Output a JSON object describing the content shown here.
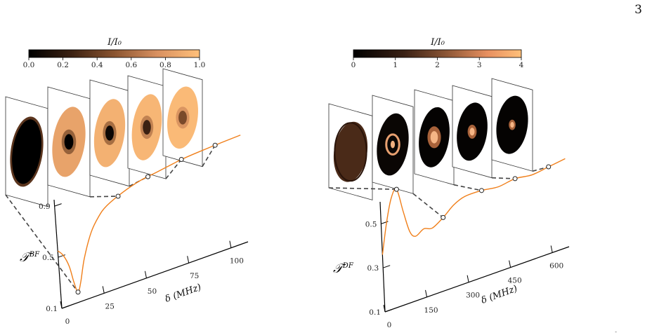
{
  "page_number": "3",
  "footer_mark": "-",
  "colors": {
    "curve": "#f07f1a",
    "dash": "#444444",
    "cmap_low": "#000000",
    "cmap_high": "#ffc07a"
  },
  "left_panel": {
    "colorbar": {
      "title": "I/I₀",
      "ticks": [
        "0.0",
        "0.2",
        "0.4",
        "0.6",
        "0.8",
        "1.0"
      ]
    },
    "ylabel_main": "𝒯",
    "ylabel_sup": "BF",
    "xlabel": "δ (MHz)",
    "yticks": [
      "0.1",
      "0.5",
      "0.9"
    ],
    "xticks": [
      "0",
      "25",
      "50",
      "75",
      "100"
    ]
  },
  "right_panel": {
    "colorbar": {
      "title": "I/I₀",
      "ticks": [
        "0",
        "1",
        "2",
        "3",
        "4"
      ]
    },
    "ylabel_main": "𝒯",
    "ylabel_sup": "DF",
    "xlabel": "δ (MHz)",
    "yticks": [
      "0.1",
      "0.3",
      "0.5"
    ],
    "xticks": [
      "0",
      "150",
      "300",
      "450",
      "600"
    ]
  },
  "chart_data": [
    {
      "type": "line",
      "xlabel": "δ (MHz)",
      "ylabel": "𝒯^BF",
      "xlim": [
        0,
        110
      ],
      "ylim": [
        0.1,
        0.95
      ],
      "series": [
        {
          "x": [
            0,
            3,
            6,
            8,
            10,
            12,
            15,
            20,
            25,
            30,
            40,
            50,
            60,
            70,
            75,
            85,
            100,
            110
          ],
          "y": [
            0.55,
            0.5,
            0.4,
            0.27,
            0.18,
            0.25,
            0.42,
            0.6,
            0.7,
            0.76,
            0.82,
            0.86,
            0.88,
            0.9,
            0.91,
            0.92,
            0.93,
            0.935
          ]
        }
      ],
      "markers_x": [
        10,
        37,
        55,
        75,
        95
      ],
      "panel_images": [
        {
          "type": "ring",
          "inner": 0.0,
          "outer": 0.35
        },
        {
          "type": "dip",
          "center": 0.0,
          "edge": 0.85
        },
        {
          "type": "dip",
          "center": 0.05,
          "edge": 0.92
        },
        {
          "type": "dip",
          "center": 0.25,
          "edge": 0.95
        },
        {
          "type": "dip",
          "center": 0.45,
          "edge": 0.97
        }
      ]
    },
    {
      "type": "line",
      "xlabel": "δ (MHz)",
      "ylabel": "𝒯^DF",
      "xlim": [
        0,
        660
      ],
      "ylim": [
        0.1,
        0.6
      ],
      "series": [
        {
          "x": [
            0,
            20,
            40,
            60,
            80,
            100,
            120,
            150,
            180,
            220,
            260,
            300,
            360,
            420,
            480,
            540,
            600,
            660
          ],
          "y": [
            0.36,
            0.5,
            0.6,
            0.63,
            0.52,
            0.42,
            0.39,
            0.41,
            0.4,
            0.43,
            0.47,
            0.49,
            0.49,
            0.48,
            0.49,
            0.48,
            0.49,
            0.5
          ]
        }
      ],
      "markers_x": [
        60,
        220,
        360,
        480,
        600
      ],
      "panel_images": [
        {
          "type": "uniform",
          "level": 0.12
        },
        {
          "type": "rings"
        },
        {
          "type": "spot",
          "size": 0.45
        },
        {
          "type": "spot",
          "size": 0.3
        },
        {
          "type": "spot",
          "size": 0.22
        }
      ]
    }
  ]
}
